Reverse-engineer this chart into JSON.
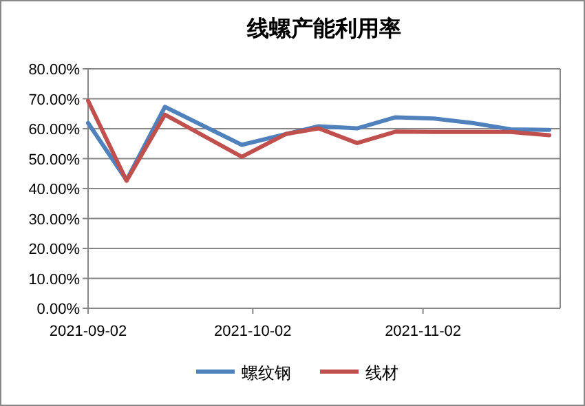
{
  "chart_data": {
    "type": "line",
    "title": "线螺产能利用率",
    "x": [
      "2021-09-02",
      "2021-09-09",
      "2021-09-16",
      "2021-09-30",
      "2021-10-08",
      "2021-10-14",
      "2021-10-21",
      "2021-10-28",
      "2021-11-04",
      "2021-11-11",
      "2021-11-18",
      "2021-11-25"
    ],
    "series": [
      {
        "name": "螺纹钢",
        "color": "#4f81bd",
        "values": [
          61.9,
          42.8,
          67.3,
          54.6,
          58.2,
          60.8,
          60.1,
          63.8,
          63.4,
          61.9,
          59.8,
          59.6
        ]
      },
      {
        "name": "线材",
        "color": "#c0504d",
        "values": [
          69.3,
          42.6,
          64.7,
          50.6,
          58.2,
          60.1,
          55.2,
          59.0,
          58.9,
          58.9,
          58.9,
          57.8
        ]
      }
    ],
    "xlim": [
      "2021-09-02",
      "2021-11-27"
    ],
    "xticks": [
      {
        "value": "2021-09-02",
        "label": "2021-09-02"
      },
      {
        "value": "2021-10-02",
        "label": "2021-10-02"
      },
      {
        "value": "2021-11-02",
        "label": "2021-11-02"
      }
    ],
    "ylim": [
      0,
      80
    ],
    "yticks": [
      {
        "value": 0,
        "label": "0.00%"
      },
      {
        "value": 10,
        "label": "10.00%"
      },
      {
        "value": 20,
        "label": "20.00%"
      },
      {
        "value": 30,
        "label": "30.00%"
      },
      {
        "value": 40,
        "label": "40.00%"
      },
      {
        "value": 50,
        "label": "50.00%"
      },
      {
        "value": 60,
        "label": "60.00%"
      },
      {
        "value": 70,
        "label": "70.00%"
      },
      {
        "value": 80,
        "label": "80.00%"
      }
    ],
    "grid": "y",
    "legend": "bottom",
    "marker": "none",
    "line_style": "solid"
  }
}
